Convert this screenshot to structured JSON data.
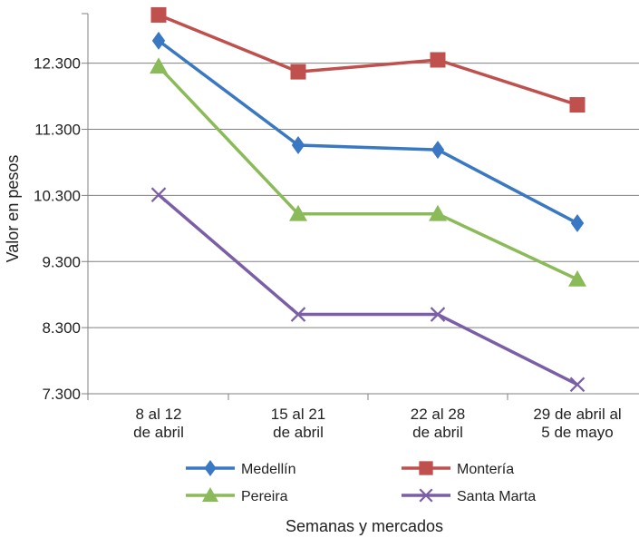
{
  "chart_data": {
    "type": "line",
    "title": "",
    "xlabel": "Semanas y mercados",
    "ylabel": "Valor en pesos",
    "categories": [
      [
        "8 al 12",
        "de abril"
      ],
      [
        "15 al 21",
        "de abril"
      ],
      [
        "22 al 28",
        "de abril"
      ],
      [
        "29 de abril al",
        "5 de mayo"
      ]
    ],
    "ylim": [
      7300,
      13050
    ],
    "yticks": [
      7300,
      8300,
      9300,
      10300,
      11300,
      12300
    ],
    "ytick_labels": [
      "7.300",
      "8.300",
      "9.300",
      "10.300",
      "11.300",
      "12.300"
    ],
    "grid": true,
    "legend_position": "bottom",
    "series": [
      {
        "name": "Medellín",
        "color": "#3a78c4",
        "marker": "diamond",
        "values": [
          12640,
          11060,
          10990,
          9880
        ]
      },
      {
        "name": "Montería",
        "color": "#c0504d",
        "marker": "square",
        "values": [
          13030,
          12170,
          12350,
          11670
        ]
      },
      {
        "name": "Pereira",
        "color": "#8bbb58",
        "marker": "triangle",
        "values": [
          12250,
          10020,
          10020,
          9030
        ]
      },
      {
        "name": "Santa Marta",
        "color": "#7b5fa6",
        "marker": "x",
        "values": [
          10310,
          8500,
          8500,
          7440
        ]
      }
    ]
  }
}
